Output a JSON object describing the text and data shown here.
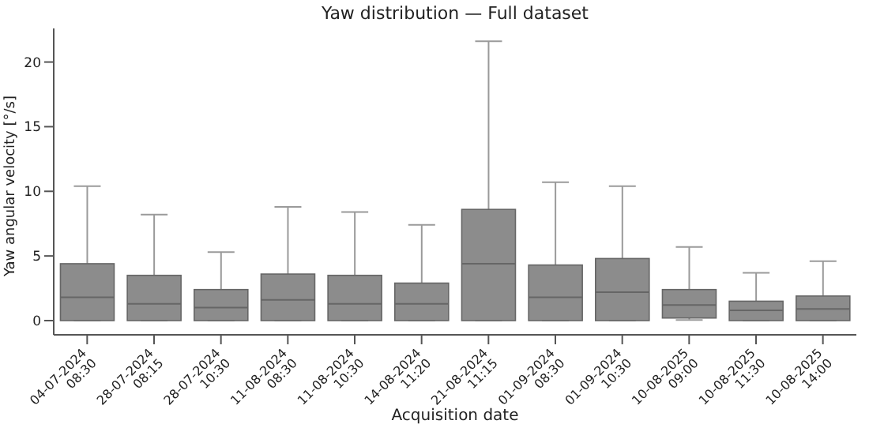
{
  "chart_data": {
    "type": "box",
    "title": "Yaw distribution — Full dataset",
    "xlabel": "Acquisition date",
    "ylabel": "Yaw angular velocity [°/s]",
    "categories": [
      "04-07-2024\n08:30",
      "28-07-2024\n08:15",
      "28-07-2024\n10:30",
      "11-08-2024\n08:30",
      "11-08-2024\n10:30",
      "14-08-2024\n11:20",
      "21-08-2024\n11:15",
      "01-09-2024\n08:30",
      "01-09-2024\n10:30",
      "10-08-2025\n09:00",
      "10-08-2025\n11:30",
      "10-08-2025\n14:00"
    ],
    "boxes": [
      {
        "low": 0,
        "q1": 0,
        "median": 1.8,
        "q3": 4.4,
        "high": 10.4
      },
      {
        "low": 0,
        "q1": 0,
        "median": 1.3,
        "q3": 3.5,
        "high": 8.2
      },
      {
        "low": 0,
        "q1": 0,
        "median": 1.0,
        "q3": 2.4,
        "high": 5.3
      },
      {
        "low": 0,
        "q1": 0,
        "median": 1.6,
        "q3": 3.6,
        "high": 8.8
      },
      {
        "low": 0,
        "q1": 0,
        "median": 1.3,
        "q3": 3.5,
        "high": 8.4
      },
      {
        "low": 0,
        "q1": 0,
        "median": 1.3,
        "q3": 2.9,
        "high": 7.4
      },
      {
        "low": 0,
        "q1": 0,
        "median": 4.4,
        "q3": 8.6,
        "high": 21.6
      },
      {
        "low": 0,
        "q1": 0,
        "median": 1.8,
        "q3": 4.3,
        "high": 10.7
      },
      {
        "low": 0,
        "q1": 0,
        "median": 2.2,
        "q3": 4.8,
        "high": 10.4
      },
      {
        "low": 0.05,
        "q1": 0.2,
        "median": 1.2,
        "q3": 2.4,
        "high": 5.7
      },
      {
        "low": 0,
        "q1": 0,
        "median": 0.8,
        "q3": 1.5,
        "high": 3.7
      },
      {
        "low": 0,
        "q1": 0,
        "median": 0.9,
        "q3": 1.9,
        "high": 4.6
      }
    ],
    "color": "#8c8c8c",
    "ylim": [
      -1.1,
      22.6
    ],
    "yticks": [
      0,
      5,
      10,
      15,
      20
    ]
  }
}
